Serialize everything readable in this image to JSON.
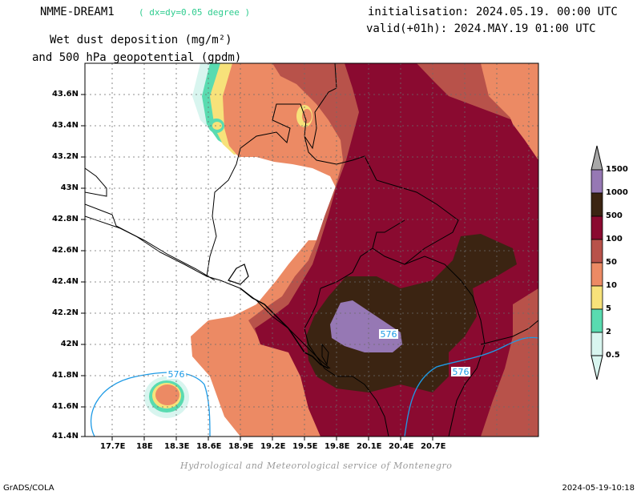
{
  "header": {
    "model": "NMME-DREAM1",
    "resolution": "( dx=dy=0.05 degree )",
    "title_line1": "Wet dust deposition (mg/m²)",
    "title_line2": "and 500 hPa geopotential (gpdm)",
    "init": "initialisation: 2024.05.19. 00:00 UTC",
    "valid": "valid(+01h): 2024.MAY.19 01:00 UTC"
  },
  "map": {
    "lat_ticks": [
      "43.6N",
      "43.4N",
      "43.2N",
      "43N",
      "42.8N",
      "42.6N",
      "42.4N",
      "42.2N",
      "42N",
      "41.8N",
      "41.6N",
      "41.4N"
    ],
    "lon_ticks": [
      "17.7E",
      "18E",
      "18.3E",
      "18.6E",
      "18.9E",
      "19.2E",
      "19.5E",
      "19.8E",
      "20.1E",
      "20.4E",
      "20.7E"
    ],
    "contour_labels": [
      "576",
      "576",
      "576"
    ],
    "contour_color": "#1e9be6"
  },
  "colorbar": {
    "levels": [
      "0.5",
      "2",
      "5",
      "10",
      "50",
      "100",
      "500",
      "1000",
      "1500"
    ],
    "colors": [
      "#d8f5ef",
      "#59dbb0",
      "#f7e27a",
      "#ec8a64",
      "#b8524a",
      "#8a0a30",
      "#3b2412",
      "#9678b4",
      "#a8a8a8"
    ]
  },
  "credit": "Hydrological and Meteorological service of Montenegro",
  "footer": {
    "left": "GrADS/COLA",
    "right": "2024-05-19-10:18"
  }
}
